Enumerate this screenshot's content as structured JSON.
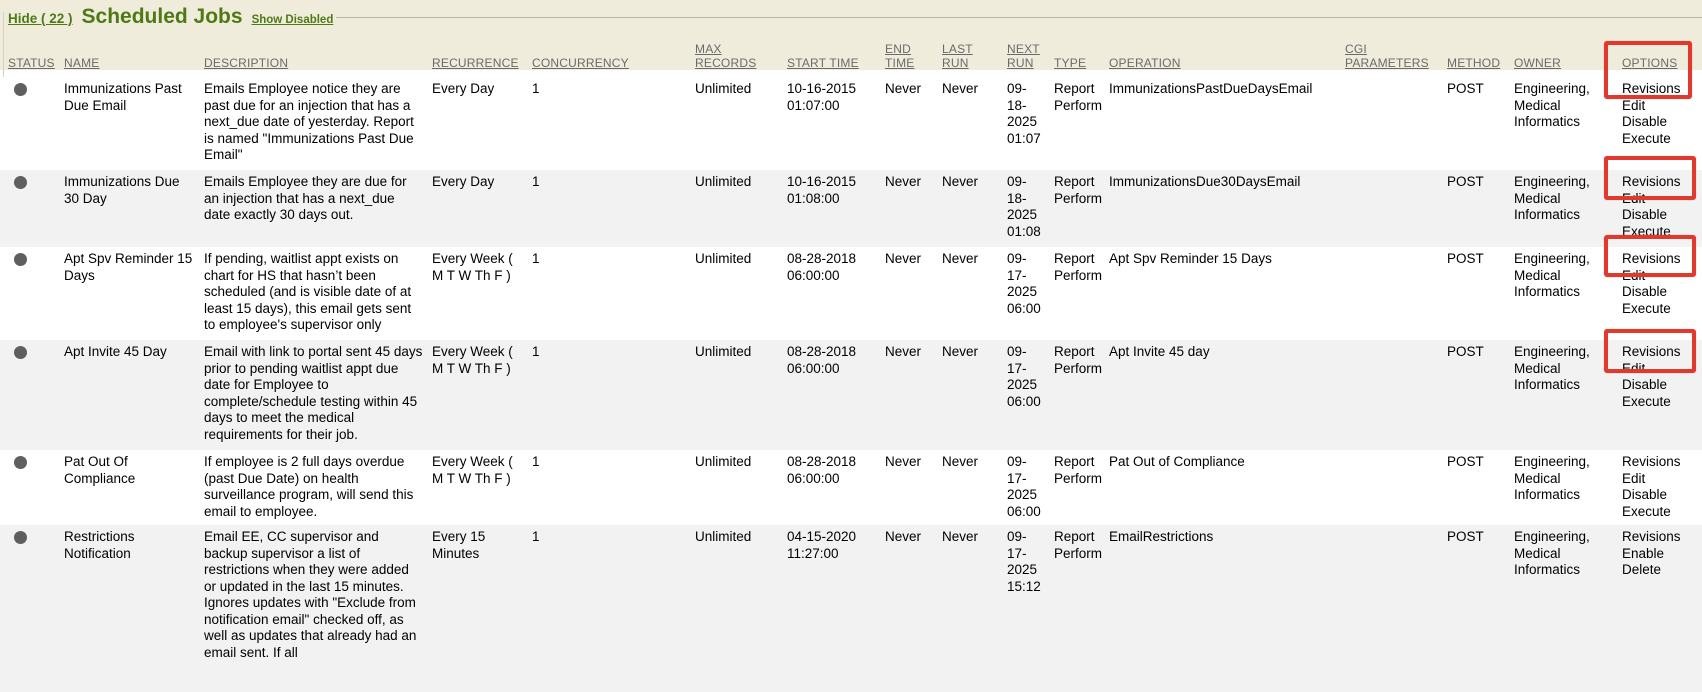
{
  "header": {
    "hide_link": "Hide ( 22 )",
    "title": "Scheduled Jobs",
    "show_disabled_link": "Show Disabled"
  },
  "colors": {
    "accent_green": "#4e7a15",
    "header_band": "#f0ecdb",
    "row_stripe": "#f2f2f3",
    "column_header_text": "#6a6a6a",
    "status_dot": "#5f5f5f",
    "annotation_red": "#e1392d"
  },
  "annotations": {
    "color": "#e1392d",
    "highlights": [
      "options-column-header-and-row-1-revisions",
      "row-2-revisions",
      "row-3-revisions",
      "row-4-revisions"
    ]
  },
  "table": {
    "columns": [
      {
        "key": "status",
        "label": "STATUS"
      },
      {
        "key": "name",
        "label": "NAME"
      },
      {
        "key": "description",
        "label": "DESCRIPTION"
      },
      {
        "key": "recurrence",
        "label": "RECURRENCE"
      },
      {
        "key": "concurrency",
        "label": "CONCURRENCY"
      },
      {
        "key": "max_records",
        "label": "MAX RECORDS"
      },
      {
        "key": "start_time",
        "label": "START TIME"
      },
      {
        "key": "end_time",
        "label": "END TIME"
      },
      {
        "key": "last_run",
        "label": "LAST RUN"
      },
      {
        "key": "next_run",
        "label": "NEXT RUN"
      },
      {
        "key": "type",
        "label": "TYPE"
      },
      {
        "key": "operation",
        "label": "OPERATION"
      },
      {
        "key": "cgi_parameters",
        "label": "CGI PARAMETERS"
      },
      {
        "key": "method",
        "label": "METHOD"
      },
      {
        "key": "owner",
        "label": "OWNER"
      },
      {
        "key": "options",
        "label": "OPTIONS"
      }
    ],
    "rows": [
      {
        "name": "Immunizations Past Due Email",
        "description": "Emails Employee notice they are past due for an injection that has a next_due date of yesterday. Report is named \"Immunizations Past Due Email\"",
        "recurrence": "Every Day",
        "concurrency": "1",
        "max_records": "Unlimited",
        "start_time": "10-16-2015 01:07:00",
        "end_time": "Never",
        "last_run": "Never",
        "next_run": "09-18-2025 01:07",
        "type": "Report Perform",
        "operation": "ImmunizationsPastDueDaysEmail",
        "cgi_parameters": "",
        "method": "POST",
        "owner": "Engineering, Medical Informatics",
        "options": [
          "Revisions",
          "Edit",
          "Disable",
          "Execute"
        ]
      },
      {
        "name": "Immunizations Due 30 Day",
        "description": "Emails Employee they are due for an injection that has a next_due date exactly 30 days out.",
        "recurrence": "Every Day",
        "concurrency": "1",
        "max_records": "Unlimited",
        "start_time": "10-16-2015 01:08:00",
        "end_time": "Never",
        "last_run": "Never",
        "next_run": "09-18-2025 01:08",
        "type": "Report Perform",
        "operation": "ImmunizationsDue30DaysEmail",
        "cgi_parameters": "",
        "method": "POST",
        "owner": "Engineering, Medical Informatics",
        "options": [
          "Revisions",
          "Edit",
          "Disable",
          "Execute"
        ]
      },
      {
        "name": "Apt Spv Reminder 15 Days",
        "description": "If pending, waitlist appt exists on chart for HS that hasn’t been scheduled (and is visible date of at least 15 days), this email gets sent to employee's supervisor only",
        "recurrence": "Every Week ( M T W Th F )",
        "concurrency": "1",
        "max_records": "Unlimited",
        "start_time": "08-28-2018 06:00:00",
        "end_time": "Never",
        "last_run": "Never",
        "next_run": "09-17-2025 06:00",
        "type": "Report Perform",
        "operation": "Apt Spv Reminder 15 Days",
        "cgi_parameters": "",
        "method": "POST",
        "owner": "Engineering, Medical Informatics",
        "options": [
          "Revisions",
          "Edit",
          "Disable",
          "Execute"
        ]
      },
      {
        "name": "Apt Invite 45 Day",
        "description": "Email with link to portal sent 45 days prior to pending waitlist appt due date for Employee to complete/schedule testing within 45 days to meet the medical requirements for their job.",
        "recurrence": "Every Week ( M T W Th F )",
        "concurrency": "1",
        "max_records": "Unlimited",
        "start_time": "08-28-2018 06:00:00",
        "end_time": "Never",
        "last_run": "Never",
        "next_run": "09-17-2025 06:00",
        "type": "Report Perform",
        "operation": "Apt Invite 45 day",
        "cgi_parameters": "",
        "method": "POST",
        "owner": "Engineering, Medical Informatics",
        "options": [
          "Revisions",
          "Edit",
          "Disable",
          "Execute"
        ]
      },
      {
        "name": "Pat Out Of Compliance",
        "description": "If employee is 2 full days overdue (past Due Date) on health surveillance program, will send this email to employee.",
        "recurrence": "Every Week ( M T W Th F )",
        "concurrency": "1",
        "max_records": "Unlimited",
        "start_time": "08-28-2018 06:00:00",
        "end_time": "Never",
        "last_run": "Never",
        "next_run": "09-17-2025 06:00",
        "type": "Report Perform",
        "operation": "Pat Out of Compliance",
        "cgi_parameters": "",
        "method": "POST",
        "owner": "Engineering, Medical Informatics",
        "options": [
          "Revisions",
          "Edit",
          "Disable",
          "Execute"
        ]
      },
      {
        "name": "Restrictions Notification",
        "description": "Email EE, CC supervisor and backup supervisor a list of restrictions when they were added or updated in the last 15 minutes. Ignores updates with \"Exclude from notification email\" checked off, as well as updates that already had an email sent. If all",
        "recurrence": "Every 15 Minutes",
        "concurrency": "1",
        "max_records": "Unlimited",
        "start_time": "04-15-2020 11:27:00",
        "end_time": "Never",
        "last_run": "Never",
        "next_run": "09-17-2025 15:12",
        "type": "Report Perform",
        "operation": "EmailRestrictions",
        "cgi_parameters": "",
        "method": "POST",
        "owner": "Engineering, Medical Informatics",
        "options": [
          "Revisions",
          "Enable",
          "Delete"
        ]
      }
    ]
  }
}
